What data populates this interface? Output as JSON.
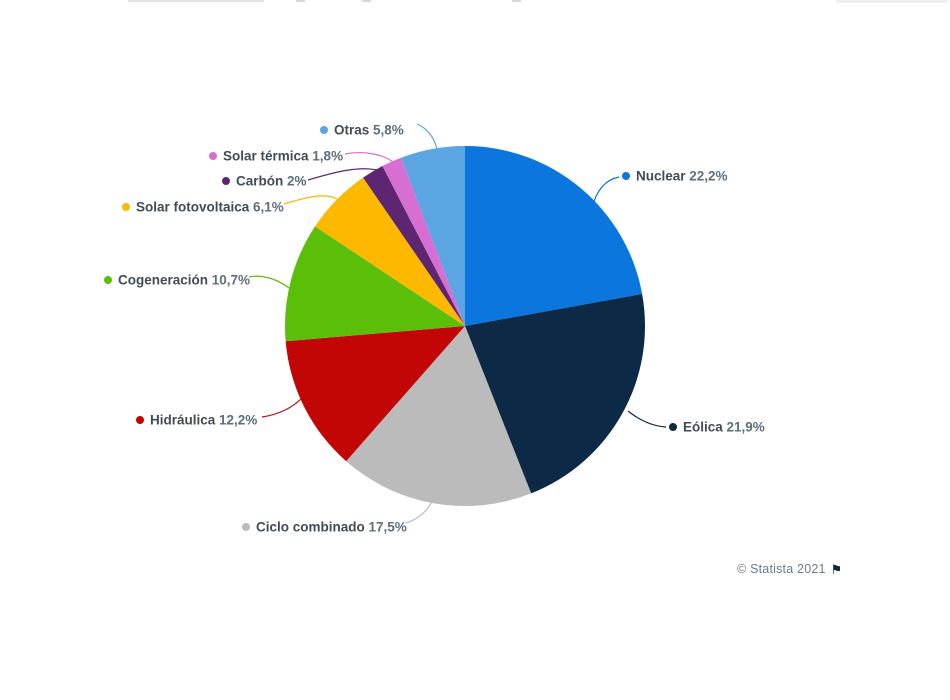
{
  "chart_data": {
    "type": "pie",
    "title": "",
    "start_angle_deg": -90,
    "direction": "clockwise",
    "legend_position": "callout-labels",
    "center": [
      465,
      326
    ],
    "radius": 180,
    "slices": [
      {
        "category": "Nuclear",
        "value": 22.2,
        "percent_label": "22,2%",
        "color": "#0a76de"
      },
      {
        "category": "Eólica",
        "value": 21.9,
        "percent_label": "21,9%",
        "color": "#0c2a45"
      },
      {
        "category": "Ciclo combinado",
        "value": 17.5,
        "percent_label": "17,5%",
        "color": "#bbbbbb"
      },
      {
        "category": "Hidráulica",
        "value": 12.2,
        "percent_label": "12,2%",
        "color": "#c20606"
      },
      {
        "category": "Cogeneración",
        "value": 10.7,
        "percent_label": "10,7%",
        "color": "#5bbf0a"
      },
      {
        "category": "Solar fotovoltaica",
        "value": 6.1,
        "percent_label": "6,1%",
        "color": "#fcb900"
      },
      {
        "category": "Carbón",
        "value": 2.0,
        "percent_label": "2%",
        "color": "#5e2572"
      },
      {
        "category": "Solar térmica",
        "value": 1.8,
        "percent_label": "1,8%",
        "color": "#d66fd1"
      },
      {
        "category": "Otras",
        "value": 5.8,
        "percent_label": "5,8%",
        "color": "#5ba6e2"
      }
    ]
  },
  "styles": {
    "label_name_color": "#414d56",
    "label_percent_color": "#5d6f7e",
    "credit_color": "#687d8c",
    "flag_color": "#0c2a45",
    "background": "#ffffff"
  },
  "footer": {
    "credit": "© Statista 2021",
    "flag_icon": "⚑"
  }
}
